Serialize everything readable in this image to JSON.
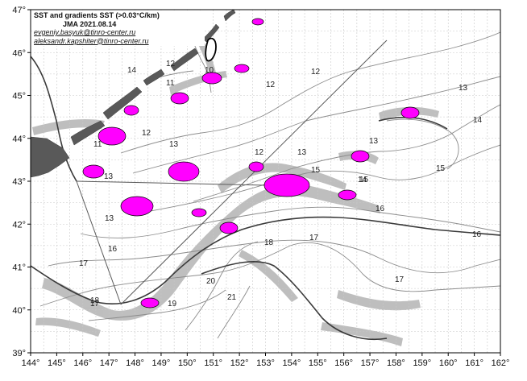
{
  "map": {
    "title": "SST and gradients SST (>0.03°C/km)",
    "date_label": "JMA 2021.08.14",
    "emails": [
      "evgeniy.basyuk@tinro-center.ru",
      "aleksandr.kapshiter@tinro-center.ru"
    ],
    "lon_labels": [
      "144°",
      "145°",
      "146°",
      "147°",
      "148°",
      "149°",
      "150°",
      "151°",
      "152°",
      "153°",
      "154°",
      "155°",
      "156°",
      "157°",
      "158°",
      "159°",
      "160°",
      "161°",
      "162°"
    ],
    "lat_labels": [
      "47°",
      "46°",
      "45°",
      "44°",
      "43°",
      "42°",
      "41°",
      "40°",
      "39°"
    ],
    "isotherm_labels": [
      "10",
      "12",
      "14",
      "11",
      "10",
      "12",
      "12",
      "12",
      "13",
      "11",
      "13",
      "12",
      "13",
      "13",
      "14",
      "13",
      "15",
      "14",
      "13",
      "15",
      "15",
      "16",
      "16",
      "16",
      "17",
      "18",
      "17",
      "17",
      "20",
      "21",
      "18",
      "19",
      "17"
    ],
    "colors": {
      "eddy": "#ff00ff",
      "land": "#595959",
      "gradient": "#a9a9a9",
      "grid": "#c8c8c8",
      "isotherm": "#8c8c8c",
      "front": "#3a3a3a"
    }
  }
}
